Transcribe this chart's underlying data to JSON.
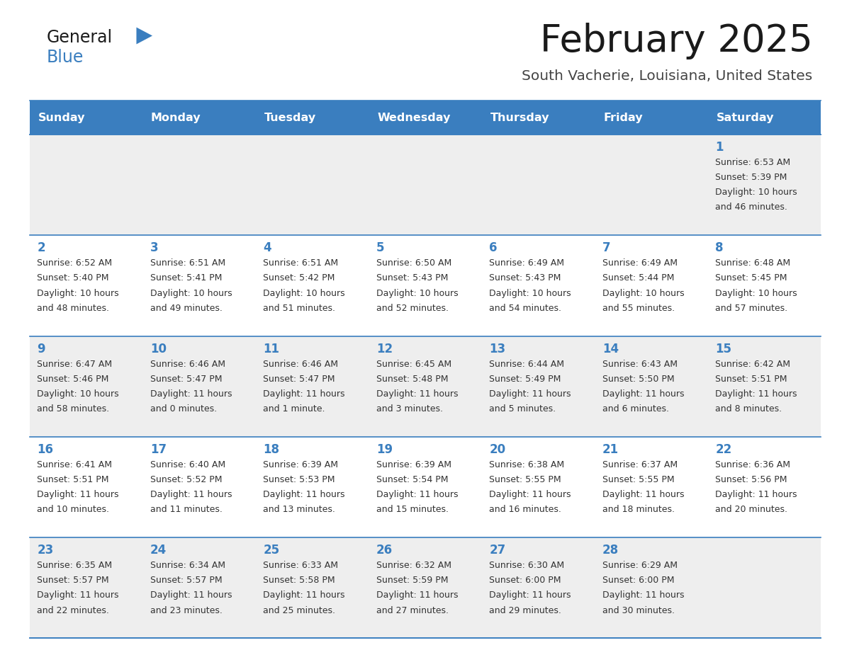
{
  "title": "February 2025",
  "subtitle": "South Vacherie, Louisiana, United States",
  "days_of_week": [
    "Sunday",
    "Monday",
    "Tuesday",
    "Wednesday",
    "Thursday",
    "Friday",
    "Saturday"
  ],
  "header_bg": "#3a7ebf",
  "header_text": "#ffffff",
  "row_bg_odd": "#eeeeee",
  "row_bg_even": "#ffffff",
  "day_number_color": "#3a7ebf",
  "text_color": "#333333",
  "separator_color": "#3a7ebf",
  "weeks": [
    [
      {
        "day": null,
        "sunrise": null,
        "sunset": null,
        "daylight": null
      },
      {
        "day": null,
        "sunrise": null,
        "sunset": null,
        "daylight": null
      },
      {
        "day": null,
        "sunrise": null,
        "sunset": null,
        "daylight": null
      },
      {
        "day": null,
        "sunrise": null,
        "sunset": null,
        "daylight": null
      },
      {
        "day": null,
        "sunrise": null,
        "sunset": null,
        "daylight": null
      },
      {
        "day": null,
        "sunrise": null,
        "sunset": null,
        "daylight": null
      },
      {
        "day": 1,
        "sunrise": "6:53 AM",
        "sunset": "5:39 PM",
        "daylight_line1": "Daylight: 10 hours",
        "daylight_line2": "and 46 minutes."
      }
    ],
    [
      {
        "day": 2,
        "sunrise": "6:52 AM",
        "sunset": "5:40 PM",
        "daylight_line1": "Daylight: 10 hours",
        "daylight_line2": "and 48 minutes."
      },
      {
        "day": 3,
        "sunrise": "6:51 AM",
        "sunset": "5:41 PM",
        "daylight_line1": "Daylight: 10 hours",
        "daylight_line2": "and 49 minutes."
      },
      {
        "day": 4,
        "sunrise": "6:51 AM",
        "sunset": "5:42 PM",
        "daylight_line1": "Daylight: 10 hours",
        "daylight_line2": "and 51 minutes."
      },
      {
        "day": 5,
        "sunrise": "6:50 AM",
        "sunset": "5:43 PM",
        "daylight_line1": "Daylight: 10 hours",
        "daylight_line2": "and 52 minutes."
      },
      {
        "day": 6,
        "sunrise": "6:49 AM",
        "sunset": "5:43 PM",
        "daylight_line1": "Daylight: 10 hours",
        "daylight_line2": "and 54 minutes."
      },
      {
        "day": 7,
        "sunrise": "6:49 AM",
        "sunset": "5:44 PM",
        "daylight_line1": "Daylight: 10 hours",
        "daylight_line2": "and 55 minutes."
      },
      {
        "day": 8,
        "sunrise": "6:48 AM",
        "sunset": "5:45 PM",
        "daylight_line1": "Daylight: 10 hours",
        "daylight_line2": "and 57 minutes."
      }
    ],
    [
      {
        "day": 9,
        "sunrise": "6:47 AM",
        "sunset": "5:46 PM",
        "daylight_line1": "Daylight: 10 hours",
        "daylight_line2": "and 58 minutes."
      },
      {
        "day": 10,
        "sunrise": "6:46 AM",
        "sunset": "5:47 PM",
        "daylight_line1": "Daylight: 11 hours",
        "daylight_line2": "and 0 minutes."
      },
      {
        "day": 11,
        "sunrise": "6:46 AM",
        "sunset": "5:47 PM",
        "daylight_line1": "Daylight: 11 hours",
        "daylight_line2": "and 1 minute."
      },
      {
        "day": 12,
        "sunrise": "6:45 AM",
        "sunset": "5:48 PM",
        "daylight_line1": "Daylight: 11 hours",
        "daylight_line2": "and 3 minutes."
      },
      {
        "day": 13,
        "sunrise": "6:44 AM",
        "sunset": "5:49 PM",
        "daylight_line1": "Daylight: 11 hours",
        "daylight_line2": "and 5 minutes."
      },
      {
        "day": 14,
        "sunrise": "6:43 AM",
        "sunset": "5:50 PM",
        "daylight_line1": "Daylight: 11 hours",
        "daylight_line2": "and 6 minutes."
      },
      {
        "day": 15,
        "sunrise": "6:42 AM",
        "sunset": "5:51 PM",
        "daylight_line1": "Daylight: 11 hours",
        "daylight_line2": "and 8 minutes."
      }
    ],
    [
      {
        "day": 16,
        "sunrise": "6:41 AM",
        "sunset": "5:51 PM",
        "daylight_line1": "Daylight: 11 hours",
        "daylight_line2": "and 10 minutes."
      },
      {
        "day": 17,
        "sunrise": "6:40 AM",
        "sunset": "5:52 PM",
        "daylight_line1": "Daylight: 11 hours",
        "daylight_line2": "and 11 minutes."
      },
      {
        "day": 18,
        "sunrise": "6:39 AM",
        "sunset": "5:53 PM",
        "daylight_line1": "Daylight: 11 hours",
        "daylight_line2": "and 13 minutes."
      },
      {
        "day": 19,
        "sunrise": "6:39 AM",
        "sunset": "5:54 PM",
        "daylight_line1": "Daylight: 11 hours",
        "daylight_line2": "and 15 minutes."
      },
      {
        "day": 20,
        "sunrise": "6:38 AM",
        "sunset": "5:55 PM",
        "daylight_line1": "Daylight: 11 hours",
        "daylight_line2": "and 16 minutes."
      },
      {
        "day": 21,
        "sunrise": "6:37 AM",
        "sunset": "5:55 PM",
        "daylight_line1": "Daylight: 11 hours",
        "daylight_line2": "and 18 minutes."
      },
      {
        "day": 22,
        "sunrise": "6:36 AM",
        "sunset": "5:56 PM",
        "daylight_line1": "Daylight: 11 hours",
        "daylight_line2": "and 20 minutes."
      }
    ],
    [
      {
        "day": 23,
        "sunrise": "6:35 AM",
        "sunset": "5:57 PM",
        "daylight_line1": "Daylight: 11 hours",
        "daylight_line2": "and 22 minutes."
      },
      {
        "day": 24,
        "sunrise": "6:34 AM",
        "sunset": "5:57 PM",
        "daylight_line1": "Daylight: 11 hours",
        "daylight_line2": "and 23 minutes."
      },
      {
        "day": 25,
        "sunrise": "6:33 AM",
        "sunset": "5:58 PM",
        "daylight_line1": "Daylight: 11 hours",
        "daylight_line2": "and 25 minutes."
      },
      {
        "day": 26,
        "sunrise": "6:32 AM",
        "sunset": "5:59 PM",
        "daylight_line1": "Daylight: 11 hours",
        "daylight_line2": "and 27 minutes."
      },
      {
        "day": 27,
        "sunrise": "6:30 AM",
        "sunset": "6:00 PM",
        "daylight_line1": "Daylight: 11 hours",
        "daylight_line2": "and 29 minutes."
      },
      {
        "day": 28,
        "sunrise": "6:29 AM",
        "sunset": "6:00 PM",
        "daylight_line1": "Daylight: 11 hours",
        "daylight_line2": "and 30 minutes."
      },
      {
        "day": null,
        "sunrise": null,
        "sunset": null,
        "daylight_line1": null,
        "daylight_line2": null
      }
    ]
  ]
}
